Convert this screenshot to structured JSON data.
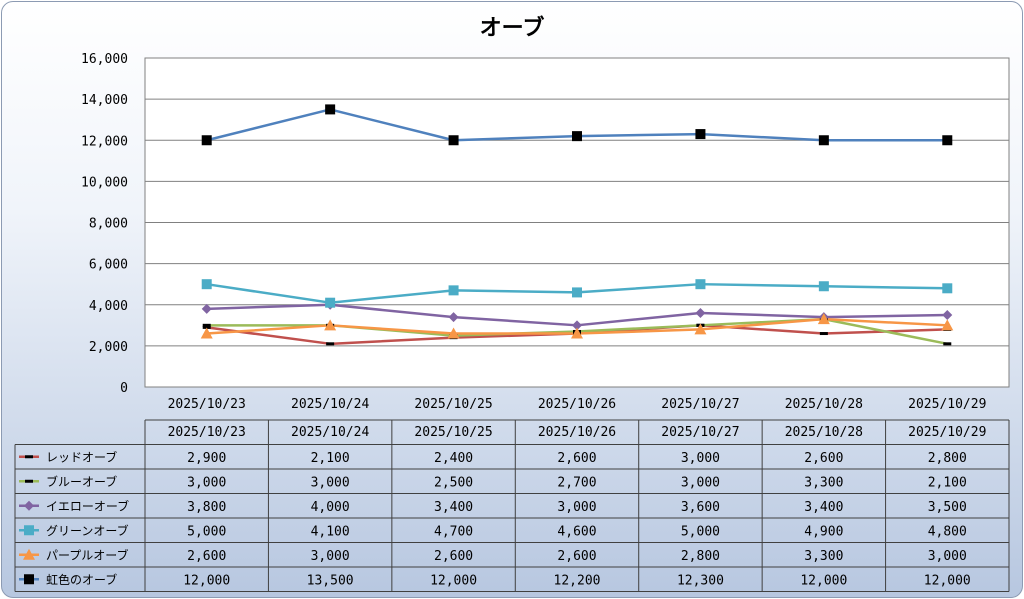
{
  "chart_data": {
    "type": "line",
    "title": "オーブ",
    "categories": [
      "2025/10/23",
      "2025/10/24",
      "2025/10/25",
      "2025/10/26",
      "2025/10/27",
      "2025/10/28",
      "2025/10/29"
    ],
    "ylim": [
      0,
      16000
    ],
    "yticks": [
      0,
      2000,
      4000,
      6000,
      8000,
      10000,
      12000,
      14000,
      16000
    ],
    "ytick_labels": [
      "0",
      "2,000",
      "4,000",
      "6,000",
      "8,000",
      "10,000",
      "12,000",
      "14,000",
      "16,000"
    ],
    "grid": true,
    "legend": "data-table",
    "series": [
      {
        "name": "レッドオーブ",
        "color": "#c0504d",
        "marker": "dash",
        "values": [
          2900,
          2100,
          2400,
          2600,
          3000,
          2600,
          2800
        ],
        "labels": [
          "2,900",
          "2,100",
          "2,400",
          "2,600",
          "3,000",
          "2,600",
          "2,800"
        ]
      },
      {
        "name": "ブルーオーブ",
        "color": "#9bbb59",
        "marker": "dash",
        "values": [
          3000,
          3000,
          2500,
          2700,
          3000,
          3300,
          2100
        ],
        "labels": [
          "3,000",
          "3,000",
          "2,500",
          "2,700",
          "3,000",
          "3,300",
          "2,100"
        ]
      },
      {
        "name": "イエローオーブ",
        "color": "#8064a2",
        "marker": "diamond",
        "values": [
          3800,
          4000,
          3400,
          3000,
          3600,
          3400,
          3500
        ],
        "labels": [
          "3,800",
          "4,000",
          "3,400",
          "3,000",
          "3,600",
          "3,400",
          "3,500"
        ]
      },
      {
        "name": "グリーンオーブ",
        "color": "#4bacc6",
        "marker": "square",
        "values": [
          5000,
          4100,
          4700,
          4600,
          5000,
          4900,
          4800
        ],
        "labels": [
          "5,000",
          "4,100",
          "4,700",
          "4,600",
          "5,000",
          "4,900",
          "4,800"
        ]
      },
      {
        "name": "パープルオーブ",
        "color": "#f79646",
        "marker": "triangle",
        "values": [
          2600,
          3000,
          2600,
          2600,
          2800,
          3300,
          3000
        ],
        "labels": [
          "2,600",
          "3,000",
          "2,600",
          "2,600",
          "2,800",
          "3,300",
          "3,000"
        ]
      },
      {
        "name": "虹色のオーブ",
        "color": "#4f81bd",
        "marker": "blacksquare",
        "values": [
          12000,
          13500,
          12000,
          12200,
          12300,
          12000,
          12000
        ],
        "labels": [
          "12,000",
          "13,500",
          "12,000",
          "12,200",
          "12,300",
          "12,000",
          "12,000"
        ]
      }
    ]
  }
}
